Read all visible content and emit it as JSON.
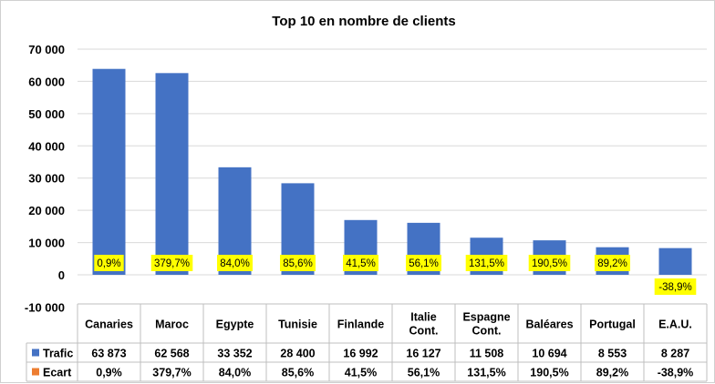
{
  "chart_data": {
    "type": "bar",
    "title": "Top 10 en nombre de clients",
    "categories": [
      [
        "Canaries"
      ],
      [
        "Maroc"
      ],
      [
        "Egypte"
      ],
      [
        "Tunisie"
      ],
      [
        "Finlande"
      ],
      [
        "Italie",
        "Cont."
      ],
      [
        "Espagne",
        "Cont."
      ],
      [
        "Baléares"
      ],
      [
        "Portugal"
      ],
      [
        "E.A.U."
      ]
    ],
    "ylim": [
      -10000,
      70000
    ],
    "yticks": [
      "-10 000",
      "0",
      "10 000",
      "20 000",
      "30 000",
      "40 000",
      "50 000",
      "60 000",
      "70 000"
    ],
    "ytick_values": [
      -10000,
      0,
      10000,
      20000,
      30000,
      40000,
      50000,
      60000,
      70000
    ],
    "grid": true,
    "legend_placement": "bottom-left (data table)",
    "series": [
      {
        "name": "Trafic",
        "color": "#4472C4",
        "values": [
          63873,
          62568,
          33352,
          28400,
          16992,
          16127,
          11508,
          10694,
          8553,
          8287
        ],
        "labels": [
          "63 873",
          "62 568",
          "33 352",
          "28 400",
          "16 992",
          "16 127",
          "11 508",
          "10 694",
          "8 553",
          "8 287"
        ]
      },
      {
        "name": "Ecart",
        "color": "#ED7D31",
        "values": [
          0.009,
          3.797,
          0.84,
          0.856,
          0.415,
          0.561,
          1.315,
          1.905,
          0.892,
          -0.389
        ],
        "labels": [
          "0,9%",
          "379,7%",
          "84,0%",
          "85,6%",
          "41,5%",
          "56,1%",
          "131,5%",
          "190,5%",
          "89,2%",
          "-38,9%"
        ]
      }
    ],
    "label_highlight_color": "#FFFF00"
  }
}
